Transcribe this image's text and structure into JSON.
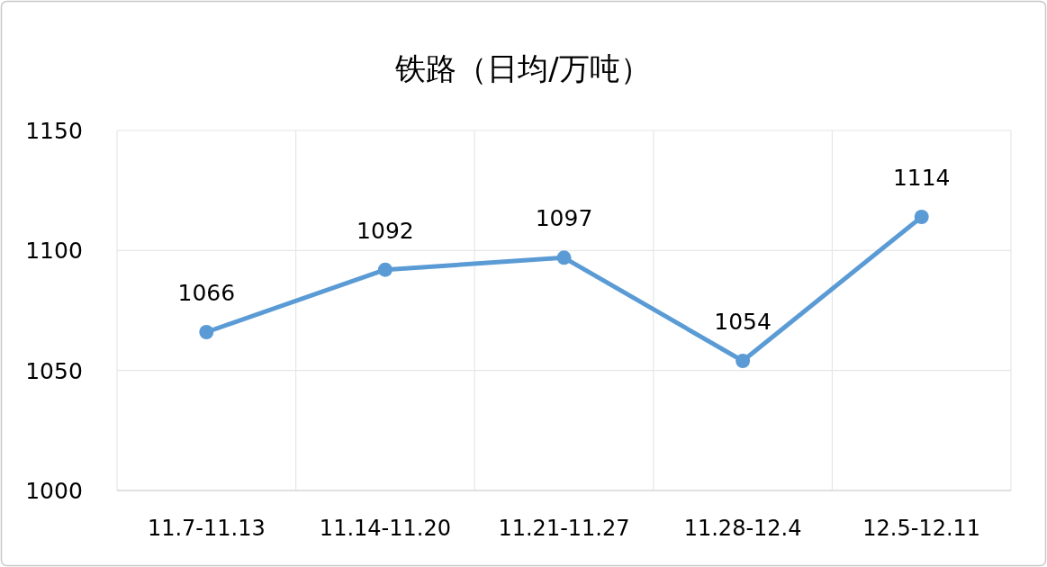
{
  "chart_data": {
    "type": "line",
    "title": "铁路（日均/万吨）",
    "categories": [
      "11.7-11.13",
      "11.14-11.20",
      "11.21-11.27",
      "11.28-12.4",
      "12.5-12.11"
    ],
    "values": [
      1066,
      1092,
      1097,
      1054,
      1114
    ],
    "color": "#5b9bd5",
    "ylim": [
      1000,
      1150
    ],
    "yticks": [
      1000,
      1050,
      1100,
      1150
    ],
    "grid": true,
    "marker": "circle",
    "data_labels": true
  }
}
